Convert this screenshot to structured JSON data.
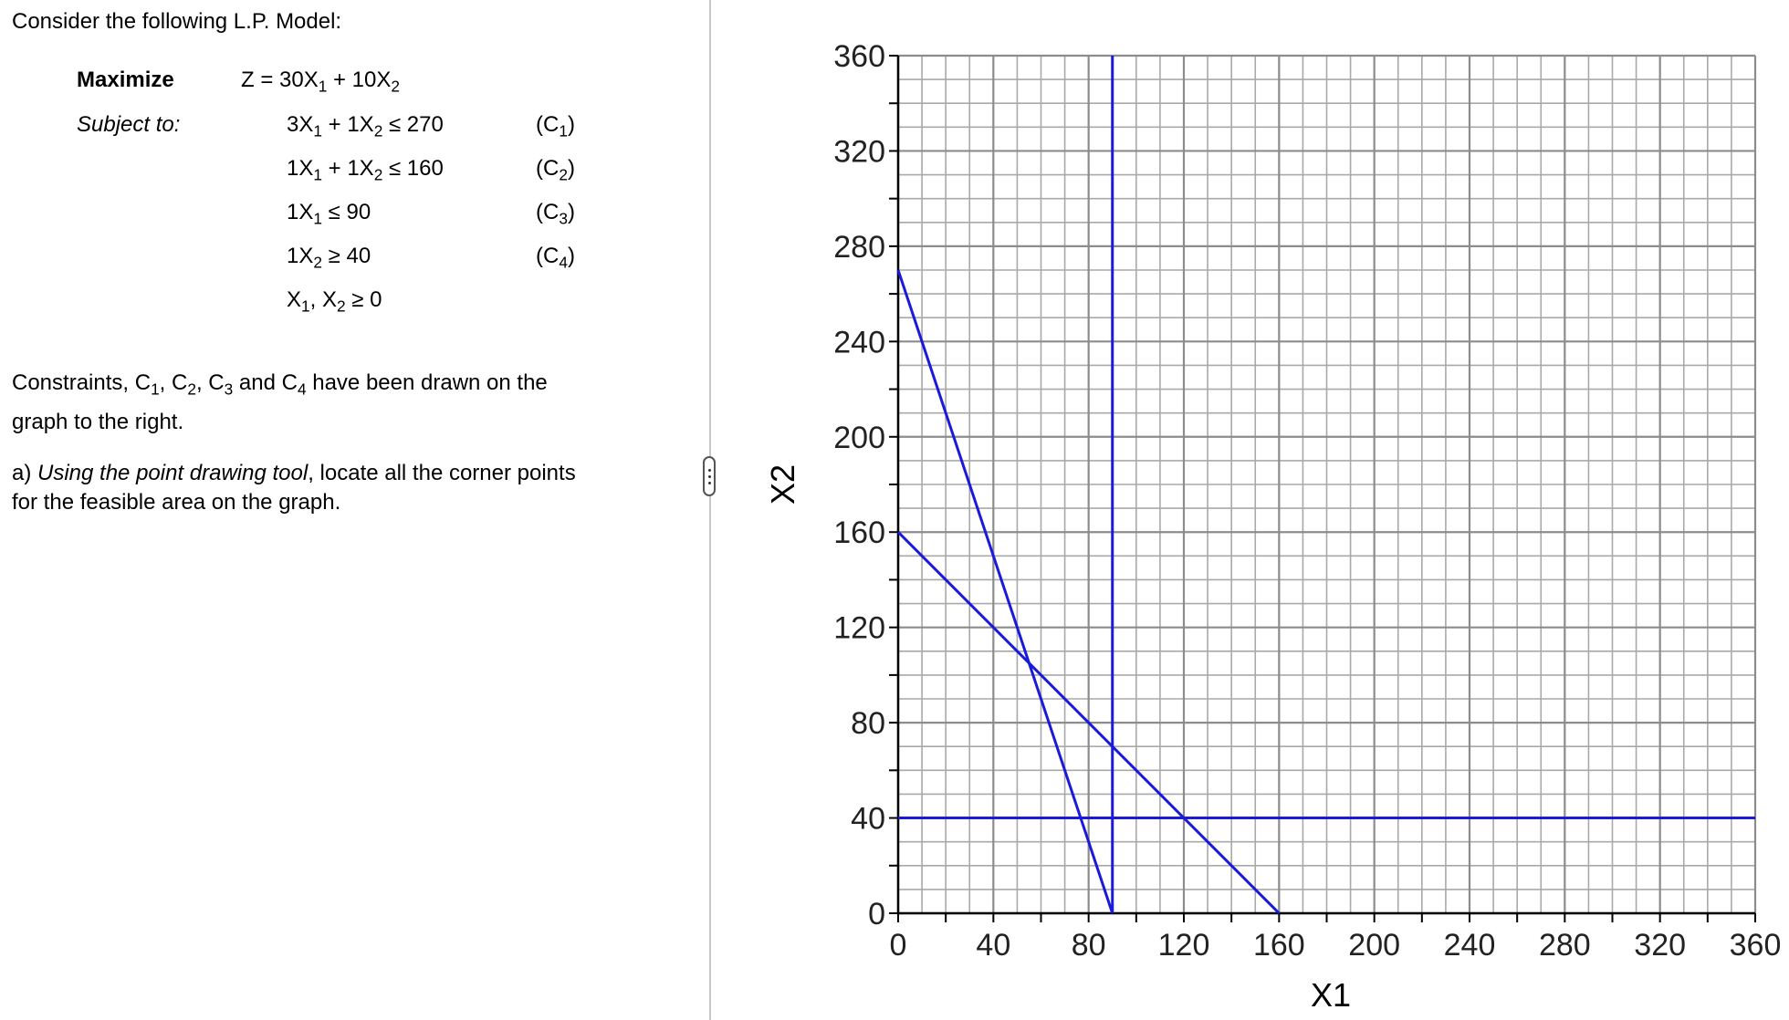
{
  "problem": {
    "intro": "Consider the following L.P. Model:",
    "maximize_label": "Maximize",
    "subject_to_label": "Subject to:",
    "objective": {
      "lhs": "Z = 30X",
      "s1": "1",
      "mid": " + 10X",
      "s2": "2"
    },
    "constraints": [
      {
        "parts": [
          "3X",
          "1",
          " + 1X",
          "2",
          " ≤ 270"
        ],
        "tag": [
          "(C",
          "1",
          ")"
        ]
      },
      {
        "parts": [
          "1X",
          "1",
          " + 1X",
          "2",
          " ≤ 160"
        ],
        "tag": [
          "(C",
          "2",
          ")"
        ]
      },
      {
        "parts": [
          "1X",
          "1",
          " ≤ 90",
          "",
          ""
        ],
        "tag": [
          "(C",
          "3",
          ")"
        ]
      },
      {
        "parts": [
          "1X",
          "2",
          " ≥ 40",
          "",
          ""
        ],
        "tag": [
          "(C",
          "4",
          ")"
        ]
      }
    ],
    "nonneg": {
      "a": "X",
      "s1": "1",
      "b": ", X",
      "s2": "2",
      "c": " ≥ 0"
    },
    "drawn_text": {
      "a": "Constraints, C",
      "s1": "1",
      "b": ", C",
      "s2": "2",
      "c": ", C",
      "s3": "3",
      "d": " and C",
      "s4": "4",
      "e": " have been drawn on the",
      "line2": "graph to the right."
    },
    "question": {
      "prefix": "a) ",
      "tool": "Using the point drawing tool",
      "rest": ", locate all the corner points",
      "line2": "for the feasible area on the graph."
    }
  },
  "chart_data": {
    "type": "line",
    "xlabel": "X1",
    "ylabel": "X2",
    "xlim": [
      0,
      360
    ],
    "ylim": [
      0,
      360
    ],
    "x_ticks": [
      0,
      40,
      80,
      120,
      160,
      200,
      240,
      280,
      320,
      360
    ],
    "y_ticks": [
      0,
      40,
      80,
      120,
      160,
      200,
      240,
      280,
      320,
      360
    ],
    "grid_minor_step": 10,
    "grid": true,
    "line_color": "#1a1adb",
    "series": [
      {
        "id": "c1",
        "points": [
          [
            0,
            270
          ],
          [
            90,
            0
          ]
        ]
      },
      {
        "id": "c2",
        "points": [
          [
            0,
            160
          ],
          [
            160,
            0
          ]
        ]
      },
      {
        "id": "c3",
        "points": [
          [
            90,
            0
          ],
          [
            90,
            360
          ]
        ]
      },
      {
        "id": "c4",
        "points": [
          [
            0,
            40
          ],
          [
            360,
            40
          ]
        ]
      }
    ]
  }
}
